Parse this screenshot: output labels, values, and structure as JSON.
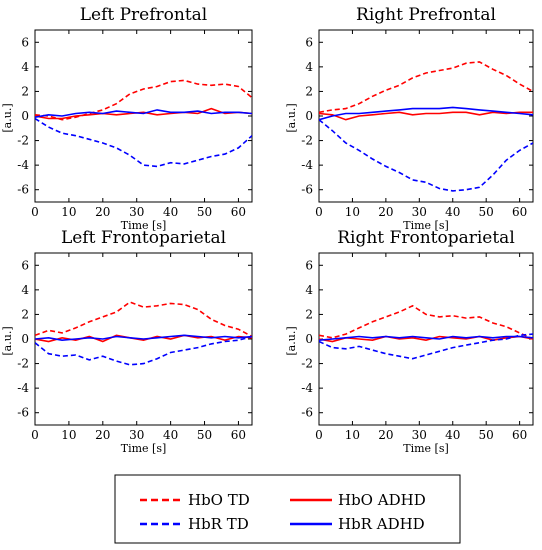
{
  "colors": {
    "hbo": "#ff0000",
    "hbr": "#0000ff"
  },
  "legend": {
    "placement": "bottom-center",
    "entries": [
      {
        "key": "hbo_td",
        "label": "HbO TD",
        "color": "#ff0000",
        "style": "dashed"
      },
      {
        "key": "hbo_adhd",
        "label": "HbO ADHD",
        "color": "#ff0000",
        "style": "solid"
      },
      {
        "key": "hbr_td",
        "label": "HbR TD",
        "color": "#0000ff",
        "style": "dashed"
      },
      {
        "key": "hbr_adhd",
        "label": "HbR ADHD",
        "color": "#0000ff",
        "style": "solid"
      }
    ]
  },
  "chart_data": [
    {
      "type": "line",
      "title": "Left Prefrontal",
      "xlabel": "Time [s]",
      "ylabel": "[a.u.]",
      "xlim": [
        0,
        64
      ],
      "ylim": [
        -7,
        7
      ],
      "xticks": [
        0,
        10,
        20,
        30,
        40,
        50,
        60
      ],
      "yticks": [
        -6,
        -4,
        -2,
        0,
        2,
        4,
        6
      ],
      "x": [
        0,
        4,
        8,
        12,
        16,
        20,
        24,
        28,
        32,
        36,
        40,
        44,
        48,
        52,
        56,
        60,
        64
      ],
      "series": [
        {
          "name": "HbO TD",
          "values": [
            0.1,
            0.0,
            -0.3,
            -0.1,
            0.2,
            0.5,
            1.0,
            1.8,
            2.2,
            2.4,
            2.8,
            2.9,
            2.6,
            2.5,
            2.6,
            2.4,
            1.5
          ]
        },
        {
          "name": "HbO ADHD",
          "values": [
            0.0,
            -0.2,
            -0.2,
            0.0,
            0.1,
            0.2,
            0.1,
            0.2,
            0.3,
            0.1,
            0.2,
            0.3,
            0.2,
            0.6,
            0.2,
            0.3,
            0.2
          ]
        },
        {
          "name": "HbR TD",
          "values": [
            -0.2,
            -0.9,
            -1.4,
            -1.6,
            -1.9,
            -2.2,
            -2.6,
            -3.2,
            -4.0,
            -4.1,
            -3.8,
            -3.9,
            -3.6,
            -3.3,
            -3.1,
            -2.6,
            -1.6
          ]
        },
        {
          "name": "HbR ADHD",
          "values": [
            -0.1,
            0.1,
            0.0,
            0.2,
            0.3,
            0.2,
            0.4,
            0.3,
            0.2,
            0.5,
            0.3,
            0.3,
            0.4,
            0.2,
            0.3,
            0.3,
            0.2
          ]
        }
      ]
    },
    {
      "type": "line",
      "title": "Right Prefrontal",
      "xlabel": "Time [s]",
      "ylabel": "[a.u.]",
      "xlim": [
        0,
        64
      ],
      "ylim": [
        -7,
        7
      ],
      "xticks": [
        0,
        10,
        20,
        30,
        40,
        50,
        60
      ],
      "yticks": [
        -6,
        -4,
        -2,
        0,
        2,
        4,
        6
      ],
      "x": [
        0,
        4,
        8,
        12,
        16,
        20,
        24,
        28,
        32,
        36,
        40,
        44,
        48,
        52,
        56,
        60,
        64
      ],
      "series": [
        {
          "name": "HbO TD",
          "values": [
            0.3,
            0.5,
            0.6,
            1.0,
            1.6,
            2.1,
            2.5,
            3.1,
            3.5,
            3.7,
            3.9,
            4.3,
            4.4,
            3.8,
            3.3,
            2.6,
            2.0
          ]
        },
        {
          "name": "HbO ADHD",
          "values": [
            0.2,
            0.1,
            -0.3,
            0.0,
            0.1,
            0.2,
            0.3,
            0.1,
            0.2,
            0.2,
            0.3,
            0.3,
            0.1,
            0.3,
            0.2,
            0.3,
            0.3
          ]
        },
        {
          "name": "HbR TD",
          "values": [
            -0.3,
            -1.2,
            -2.2,
            -2.8,
            -3.5,
            -4.1,
            -4.6,
            -5.2,
            -5.4,
            -5.9,
            -6.1,
            -6.0,
            -5.8,
            -4.8,
            -3.6,
            -2.8,
            -2.2
          ]
        },
        {
          "name": "HbR ADHD",
          "values": [
            -0.3,
            0.0,
            0.2,
            0.2,
            0.3,
            0.4,
            0.5,
            0.6,
            0.6,
            0.6,
            0.7,
            0.6,
            0.5,
            0.4,
            0.3,
            0.2,
            0.1
          ]
        }
      ]
    },
    {
      "type": "line",
      "title": "Left Frontoparietal",
      "xlabel": "Time [s]",
      "ylabel": "[a.u.]",
      "xlim": [
        0,
        64
      ],
      "ylim": [
        -7,
        7
      ],
      "xticks": [
        0,
        10,
        20,
        30,
        40,
        50,
        60
      ],
      "yticks": [
        -6,
        -4,
        -2,
        0,
        2,
        4,
        6
      ],
      "x": [
        0,
        4,
        8,
        12,
        16,
        20,
        24,
        28,
        32,
        36,
        40,
        44,
        48,
        52,
        56,
        60,
        64
      ],
      "series": [
        {
          "name": "HbO TD",
          "values": [
            0.3,
            0.7,
            0.5,
            0.9,
            1.4,
            1.8,
            2.2,
            3.0,
            2.6,
            2.7,
            2.9,
            2.8,
            2.4,
            1.6,
            1.1,
            0.8,
            0.2
          ]
        },
        {
          "name": "HbO ADHD",
          "values": [
            0.0,
            -0.2,
            0.1,
            -0.1,
            0.2,
            -0.2,
            0.3,
            0.1,
            -0.1,
            0.2,
            0.0,
            0.3,
            0.1,
            0.2,
            -0.1,
            0.2,
            0.1
          ]
        },
        {
          "name": "HbR TD",
          "values": [
            -0.3,
            -1.2,
            -1.4,
            -1.3,
            -1.7,
            -1.4,
            -1.8,
            -2.1,
            -2.0,
            -1.6,
            -1.1,
            -0.9,
            -0.7,
            -0.4,
            -0.2,
            -0.1,
            0.2
          ]
        },
        {
          "name": "HbR ADHD",
          "values": [
            0.0,
            0.1,
            -0.1,
            0.0,
            0.1,
            0.0,
            0.2,
            0.1,
            0.0,
            0.1,
            0.2,
            0.3,
            0.2,
            0.1,
            0.2,
            0.1,
            0.2
          ]
        }
      ]
    },
    {
      "type": "line",
      "title": "Right Frontoparietal",
      "xlabel": "Time [s]",
      "ylabel": "[a.u.]",
      "xlim": [
        0,
        64
      ],
      "ylim": [
        -7,
        7
      ],
      "xticks": [
        0,
        10,
        20,
        30,
        40,
        50,
        60
      ],
      "yticks": [
        -6,
        -4,
        -2,
        0,
        2,
        4,
        6
      ],
      "x": [
        0,
        4,
        8,
        12,
        16,
        20,
        24,
        28,
        32,
        36,
        40,
        44,
        48,
        52,
        56,
        60,
        64
      ],
      "series": [
        {
          "name": "HbO TD",
          "values": [
            0.3,
            0.1,
            0.4,
            0.9,
            1.4,
            1.8,
            2.2,
            2.7,
            2.0,
            1.8,
            1.9,
            1.7,
            1.8,
            1.3,
            1.0,
            0.5,
            0.0
          ]
        },
        {
          "name": "HbO ADHD",
          "values": [
            0.0,
            -0.2,
            0.1,
            0.0,
            -0.1,
            0.2,
            0.0,
            0.1,
            -0.1,
            0.2,
            0.1,
            0.0,
            0.2,
            -0.1,
            0.1,
            0.2,
            0.0
          ]
        },
        {
          "name": "HbR TD",
          "values": [
            -0.2,
            -0.7,
            -0.8,
            -0.6,
            -0.9,
            -1.2,
            -1.4,
            -1.6,
            -1.3,
            -1.0,
            -0.7,
            -0.5,
            -0.3,
            -0.1,
            0.0,
            0.3,
            0.4
          ]
        },
        {
          "name": "HbR ADHD",
          "values": [
            -0.1,
            0.0,
            0.1,
            0.2,
            0.1,
            0.2,
            0.1,
            0.2,
            0.1,
            0.0,
            0.2,
            0.1,
            0.2,
            0.1,
            0.2,
            0.2,
            0.1
          ]
        }
      ]
    }
  ]
}
